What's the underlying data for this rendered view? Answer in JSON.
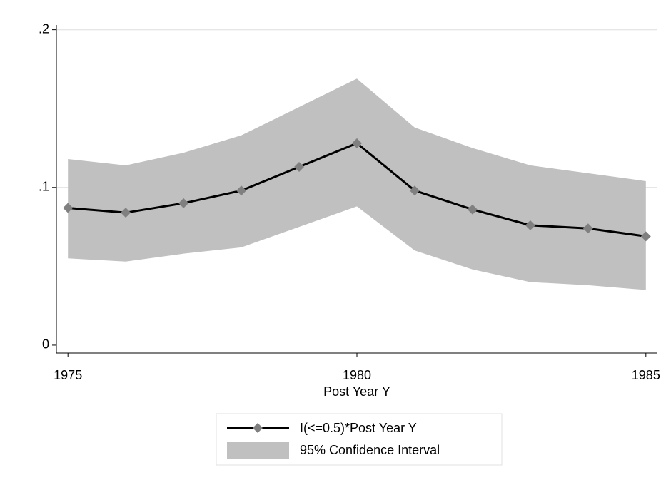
{
  "chart_data": {
    "type": "line",
    "x": [
      1975,
      1976,
      1977,
      1978,
      1979,
      1980,
      1981,
      1982,
      1983,
      1984,
      1985
    ],
    "series": [
      {
        "name": "I(<=0.5)*Post Year Y",
        "color": "#000000",
        "marker_color": "#808080",
        "values": [
          0.087,
          0.084,
          0.09,
          0.098,
          0.113,
          0.128,
          0.098,
          0.086,
          0.076,
          0.074,
          0.069
        ]
      }
    ],
    "interval": {
      "name": "95% Confidence Interval",
      "color": "#c0c0c0",
      "lower": [
        0.055,
        0.053,
        0.058,
        0.062,
        0.075,
        0.088,
        0.06,
        0.048,
        0.04,
        0.038,
        0.035
      ],
      "upper": [
        0.118,
        0.114,
        0.122,
        0.133,
        0.151,
        0.169,
        0.138,
        0.125,
        0.114,
        0.109,
        0.104
      ]
    },
    "xlabel": "Post Year Y",
    "xlim": [
      1974.8,
      1985.2
    ],
    "xticks": [
      1975,
      1980,
      1985
    ],
    "ylim": [
      -0.005,
      0.203
    ],
    "yticks": [
      0,
      {
        "value": 0.1,
        "label": ".1"
      },
      {
        "value": 0.2,
        "label": ".2"
      }
    ],
    "grid": true
  }
}
